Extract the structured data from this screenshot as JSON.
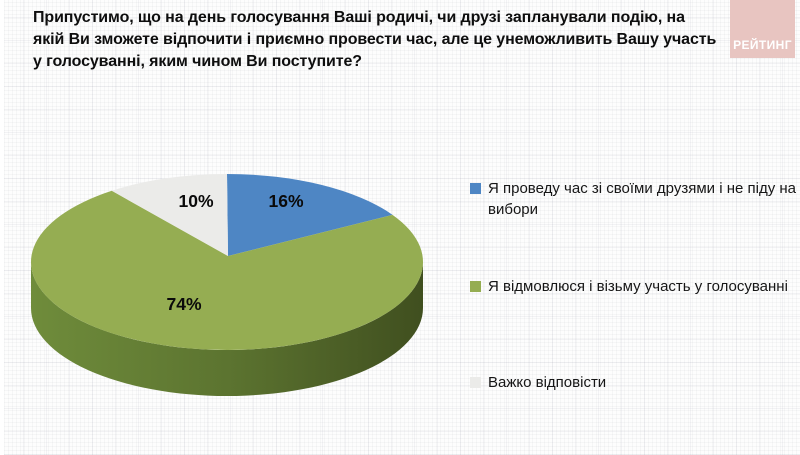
{
  "header": {
    "title_lines": [
      "Припустимо, що на день голосування Ваші родичі, чи друзі запланували подію, на",
      "якій Ви зможете відпочити і приємно провести час, але це унеможливить Вашу участь",
      "у голосуванні, яким чином Ви поступите?"
    ]
  },
  "brand": {
    "logo_text": "РЕЙТИНГ",
    "logo_bg": "#e8c5c1",
    "logo_text_color": "#ffffff"
  },
  "chart_data": {
    "type": "pie",
    "style": "3d",
    "title": "Припустимо, що на день голосування Ваші родичі, чи друзі запланували подію, на якій Ви зможете відпочити і приємно провести час, але це унеможливить Вашу участь у голосуванні, яким чином Ви поступите?",
    "start_angle_deg": 0,
    "direction": "clockwise",
    "legend_position": "right",
    "slices": [
      {
        "label": "Я проведу час зі своїми друзями і не піду на вибори",
        "value": 16,
        "display": "16%",
        "color": "#4e86c4"
      },
      {
        "label": "Я відмовлюся і візьму участь у голосуванні",
        "value": 74,
        "display": "74%",
        "color": "#95ad52",
        "side_gradient": [
          "#6f8c3b",
          "#5c7430",
          "#404f1f"
        ]
      },
      {
        "label": "Важко відповісти",
        "value": 10,
        "display": "10%",
        "color": "#ebebe9"
      }
    ]
  }
}
